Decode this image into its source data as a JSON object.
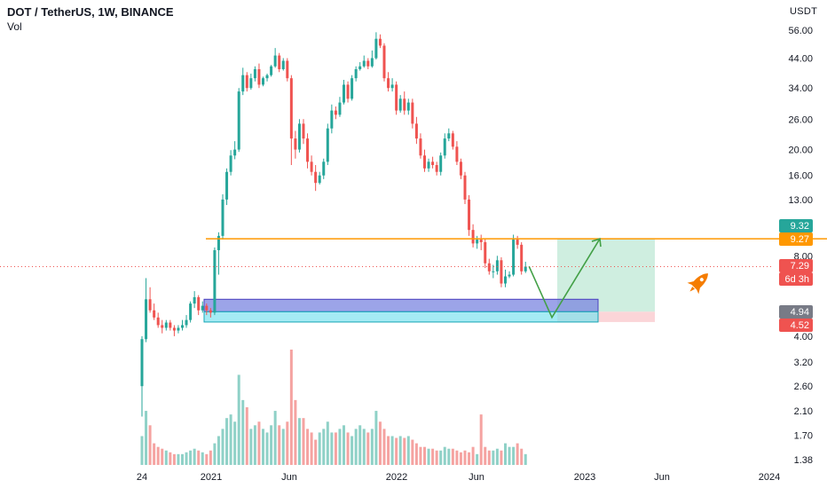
{
  "header": {
    "title": "DOT / TetherUS, 1W, BINANCE",
    "volume_label": "Vol",
    "currency": "USDT"
  },
  "icons": {
    "rocket": "rocket-icon"
  },
  "colors": {
    "up": "#26a69a",
    "down": "#ef5350",
    "vol_up": "#8fd1c7",
    "vol_down": "#f5a3a1",
    "level": "#ff9800",
    "arrow": "#43a047",
    "box_blue": "#7b86e0",
    "box_cyan": "#7fe3ef",
    "profit_zone": "#cfeee0",
    "loss_zone": "#fbd5d8",
    "rocket": "#f57c00"
  },
  "chart_data": {
    "type": "candlestick",
    "title": "DOT / TetherUS, 1W, BINANCE",
    "y_scale": "log",
    "ylim": [
      1.3,
      60
    ],
    "y_ticks": [
      "56.00",
      "44.00",
      "34.00",
      "26.00",
      "20.00",
      "16.00",
      "13.00",
      "8.00",
      "4.00",
      "3.20",
      "2.60",
      "2.10",
      "1.70",
      "1.38"
    ],
    "x_ticks": [
      "24",
      "2021",
      "Jun",
      "2022",
      "Jun",
      "2023",
      "Jun",
      "2024"
    ],
    "key_levels": [
      {
        "label": "9.32",
        "value": 9.32,
        "color": "#26a69a"
      },
      {
        "label": "9.27",
        "value": 9.27,
        "color": "#ff9800"
      },
      {
        "label": "7.29",
        "value": 7.29,
        "color": "#ef5350",
        "sub": "6d 3h"
      },
      {
        "label": "4.94",
        "value": 4.94,
        "color": "#787b86"
      },
      {
        "label": "4.52",
        "value": 4.52,
        "color": "#ef5350"
      }
    ],
    "resistance_level": 9.27,
    "last_price": 7.29,
    "demand_zone_upper": [
      4.94,
      5.5
    ],
    "demand_zone_lower": [
      4.52,
      4.94
    ],
    "projection": {
      "from": 7.3,
      "low": 4.7,
      "target": 9.27
    },
    "candles": {
      "open": [
        2.6,
        3.9,
        5.5,
        5.0,
        4.7,
        4.4,
        4.3,
        4.5,
        4.3,
        4.2,
        4.3,
        4.4,
        4.6,
        5.3,
        5.6,
        5.0,
        5.2,
        5.0,
        4.9,
        8.4,
        9.5,
        13.0,
        16.5,
        19.0,
        20.0,
        33.0,
        38.0,
        34.0,
        37.0,
        40.0,
        35.0,
        37.0,
        38.0,
        41.0,
        45.0,
        40.0,
        43.0,
        37.0,
        22.0,
        20.0,
        25.0,
        22.0,
        18.0,
        16.5,
        15.0,
        16.0,
        18.0,
        24.0,
        28.0,
        27.0,
        30.0,
        35.0,
        31.0,
        37.0,
        40.0,
        41.0,
        43.0,
        41.0,
        44.0,
        52.0,
        49.0,
        37.0,
        34.0,
        35.0,
        28.0,
        31.0,
        28.0,
        30.0,
        25.0,
        22.0,
        19.0,
        17.0,
        18.0,
        17.5,
        16.5,
        19.0,
        22.0,
        23.0,
        20.5,
        18.0,
        16.0,
        13.0,
        10.0,
        8.9,
        9.2,
        9.0,
        7.5,
        7.0,
        7.0,
        7.7,
        6.3,
        6.7,
        6.8,
        9.2,
        8.8,
        7.0
      ],
      "close": [
        3.9,
        5.5,
        5.0,
        4.7,
        4.4,
        4.3,
        4.5,
        4.3,
        4.2,
        4.3,
        4.4,
        4.6,
        5.3,
        5.6,
        5.0,
        5.2,
        5.0,
        4.9,
        8.4,
        9.5,
        13.0,
        16.5,
        19.0,
        20.0,
        33.0,
        38.0,
        34.0,
        37.0,
        40.0,
        35.0,
        37.0,
        38.0,
        41.0,
        45.0,
        40.0,
        43.0,
        37.0,
        22.0,
        20.0,
        25.0,
        22.0,
        18.0,
        16.5,
        15.0,
        16.0,
        18.0,
        24.0,
        28.0,
        27.0,
        30.0,
        35.0,
        31.0,
        37.0,
        40.0,
        41.0,
        43.0,
        41.0,
        44.0,
        52.0,
        49.0,
        37.0,
        34.0,
        35.0,
        28.0,
        31.0,
        28.0,
        30.0,
        25.0,
        22.0,
        19.0,
        17.0,
        18.0,
        17.5,
        16.5,
        19.0,
        22.0,
        23.0,
        20.5,
        18.0,
        16.0,
        13.0,
        10.0,
        8.9,
        9.2,
        9.0,
        7.5,
        7.0,
        7.0,
        7.7,
        6.3,
        6.7,
        6.8,
        9.2,
        8.8,
        7.0,
        7.29
      ],
      "high": [
        4.0,
        6.6,
        6.1,
        5.3,
        4.9,
        4.6,
        4.6,
        4.6,
        4.4,
        4.4,
        4.6,
        4.8,
        5.4,
        5.9,
        5.7,
        5.4,
        5.3,
        5.1,
        8.6,
        9.8,
        13.6,
        17.0,
        19.9,
        21.5,
        34.0,
        40.5,
        39.0,
        38.5,
        41.0,
        42.0,
        37.5,
        38.5,
        41.5,
        48.0,
        46.0,
        44.0,
        44.0,
        38.0,
        23.5,
        26.0,
        26.0,
        23.0,
        19.0,
        17.5,
        16.5,
        18.5,
        25.0,
        29.5,
        29.0,
        31.5,
        36.5,
        36.0,
        38.0,
        41.0,
        42.5,
        45.0,
        44.0,
        47.0,
        55.0,
        54.0,
        50.0,
        39.0,
        37.0,
        36.0,
        32.0,
        33.0,
        31.0,
        31.0,
        26.5,
        23.0,
        20.0,
        18.5,
        18.8,
        18.0,
        19.5,
        23.0,
        24.0,
        23.5,
        21.5,
        18.5,
        16.5,
        13.5,
        10.5,
        9.5,
        9.6,
        9.3,
        7.8,
        7.4,
        8.0,
        7.9,
        7.1,
        7.0,
        9.6,
        9.5,
        9.0,
        7.6
      ],
      "low": [
        2.0,
        3.8,
        4.9,
        4.6,
        4.3,
        4.1,
        4.2,
        4.2,
        4.0,
        4.1,
        4.2,
        4.3,
        4.5,
        5.1,
        4.8,
        4.9,
        4.8,
        4.7,
        4.8,
        6.8,
        9.2,
        12.4,
        16.0,
        18.4,
        19.6,
        32.0,
        33.0,
        33.5,
        36.0,
        34.0,
        34.5,
        36.0,
        37.5,
        40.5,
        39.0,
        39.5,
        36.0,
        17.5,
        18.5,
        19.5,
        21.0,
        17.0,
        16.0,
        14.0,
        14.8,
        15.5,
        17.5,
        23.0,
        26.0,
        26.5,
        29.5,
        30.0,
        30.5,
        36.0,
        39.5,
        40.5,
        40.0,
        40.5,
        43.5,
        48.0,
        36.0,
        33.0,
        33.0,
        27.0,
        27.5,
        27.0,
        27.0,
        24.0,
        21.0,
        18.5,
        16.5,
        16.5,
        17.0,
        16.0,
        16.0,
        18.5,
        21.5,
        20.0,
        17.5,
        15.5,
        12.5,
        9.5,
        8.6,
        8.5,
        8.4,
        7.2,
        6.8,
        6.6,
        6.8,
        6.1,
        6.1,
        6.6,
        6.7,
        8.5,
        6.8,
        6.9
      ]
    },
    "volume": [
      80,
      150,
      110,
      60,
      50,
      45,
      40,
      35,
      30,
      30,
      30,
      35,
      40,
      45,
      40,
      35,
      30,
      40,
      60,
      80,
      100,
      130,
      140,
      120,
      250,
      180,
      160,
      100,
      110,
      120,
      100,
      90,
      110,
      150,
      110,
      100,
      120,
      320,
      180,
      130,
      130,
      100,
      90,
      70,
      90,
      100,
      120,
      90,
      90,
      100,
      110,
      90,
      80,
      100,
      110,
      100,
      90,
      100,
      150,
      120,
      100,
      80,
      80,
      75,
      80,
      75,
      80,
      70,
      60,
      50,
      50,
      45,
      45,
      40,
      40,
      50,
      45,
      45,
      40,
      35,
      40,
      35,
      50,
      30,
      140,
      50,
      40,
      40,
      45,
      40,
      60,
      50,
      50,
      60,
      45,
      30
    ]
  }
}
